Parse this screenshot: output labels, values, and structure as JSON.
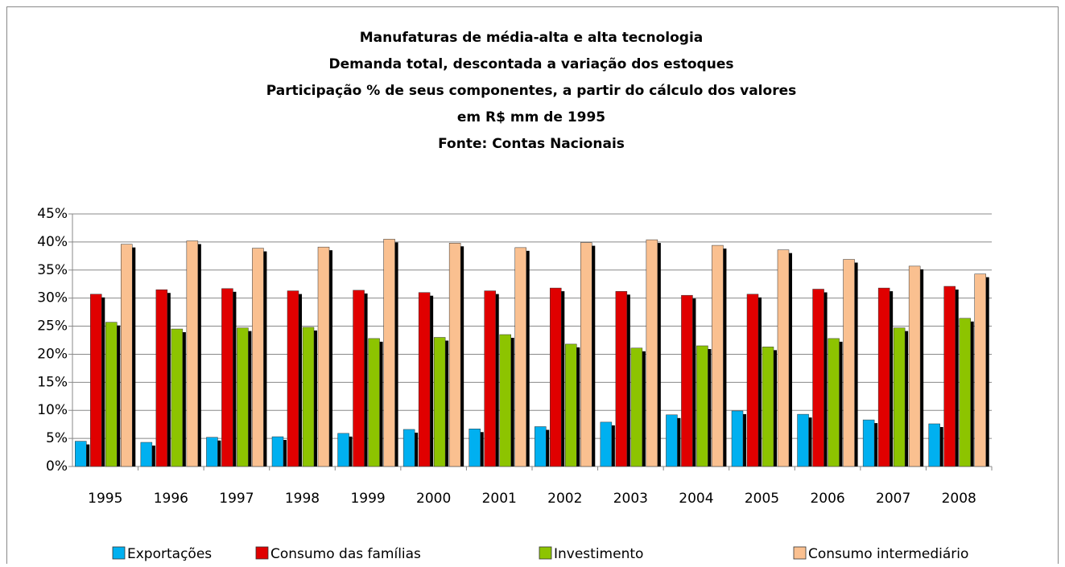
{
  "chart_data": {
    "type": "bar",
    "title": [
      "Manufaturas de média-alta e alta tecnologia",
      "Demanda total, descontada a variação dos estoques",
      "Participação % de seus componentes, a partir do cálculo dos valores",
      "em R$ mm de 1995",
      "Fonte: Contas Nacionais"
    ],
    "categories": [
      "1995",
      "1996",
      "1997",
      "1998",
      "1999",
      "2000",
      "2001",
      "2002",
      "2003",
      "2004",
      "2005",
      "2006",
      "2007",
      "2008"
    ],
    "series": [
      {
        "name": "Exportações",
        "color": "#00b0f0",
        "values": [
          4.5,
          4.3,
          5.2,
          5.3,
          5.9,
          6.6,
          6.7,
          7.1,
          7.9,
          9.2,
          9.9,
          9.3,
          8.3,
          7.6
        ]
      },
      {
        "name": "Consumo das famílias",
        "color": "#e00000",
        "values": [
          30.7,
          31.5,
          31.7,
          31.3,
          31.4,
          31.0,
          31.3,
          31.8,
          31.2,
          30.5,
          30.7,
          31.6,
          31.8,
          32.1
        ]
      },
      {
        "name": "Investimento",
        "color": "#8dc400",
        "values": [
          25.7,
          24.5,
          24.7,
          24.8,
          22.8,
          23.0,
          23.5,
          21.8,
          21.1,
          21.5,
          21.3,
          22.8,
          24.7,
          26.4
        ]
      },
      {
        "name": "Consumo intermediário",
        "color": "#fac090",
        "values": [
          39.6,
          40.2,
          38.9,
          39.1,
          40.5,
          39.8,
          39.0,
          39.9,
          40.4,
          39.4,
          38.6,
          36.9,
          35.7,
          34.3
        ]
      }
    ],
    "ylim": [
      0,
      45
    ],
    "yticks": [
      {
        "value": 0,
        "label": "0%"
      },
      {
        "value": 5,
        "label": "5%"
      },
      {
        "value": 10,
        "label": "10%"
      },
      {
        "value": 15,
        "label": "15%"
      },
      {
        "value": 20,
        "label": "20%"
      },
      {
        "value": 25,
        "label": "25%"
      },
      {
        "value": 30,
        "label": "30%"
      },
      {
        "value": 35,
        "label": "35%"
      },
      {
        "value": 40,
        "label": "40%"
      },
      {
        "value": 45,
        "label": "45%"
      }
    ],
    "grid": true
  }
}
